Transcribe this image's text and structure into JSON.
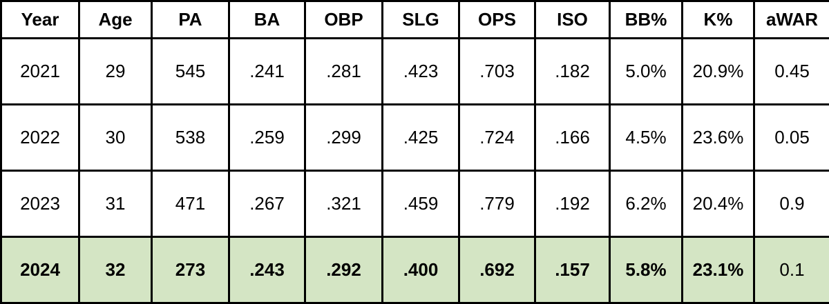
{
  "table": {
    "header": [
      "Year",
      "Age",
      "PA",
      "BA",
      "OBP",
      "SLG",
      "OPS",
      "ISO",
      "BB%",
      "K%",
      "aWAR"
    ],
    "rows": [
      [
        "2021",
        "29",
        "545",
        ".241",
        ".281",
        ".423",
        ".703",
        ".182",
        "5.0%",
        "20.9%",
        "0.45"
      ],
      [
        "2022",
        "30",
        "538",
        ".259",
        ".299",
        ".425",
        ".724",
        ".166",
        "4.5%",
        "23.6%",
        "0.05"
      ],
      [
        "2023",
        "31",
        "471",
        ".267",
        ".321",
        ".459",
        ".779",
        ".192",
        "6.2%",
        "20.4%",
        "0.9"
      ],
      [
        "2024",
        "32",
        "273",
        ".243",
        ".292",
        ".400",
        ".692",
        ".157",
        "5.8%",
        "23.1%",
        "0.1"
      ]
    ]
  }
}
